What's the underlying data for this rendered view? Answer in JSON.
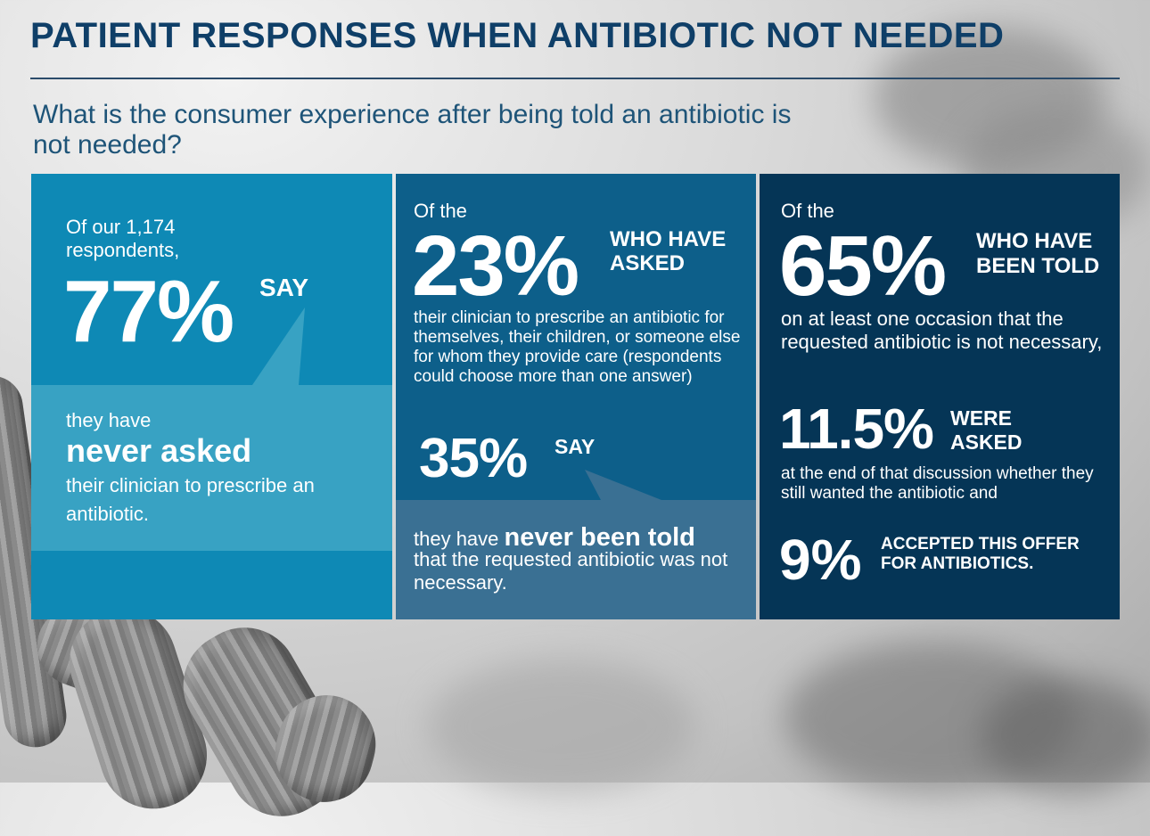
{
  "header": {
    "title": "PATIENT RESPONSES WHEN ANTIBIOTIC NOT NEEDED",
    "subtitle": "What is the consumer experience after being told an antibiotic is not needed?"
  },
  "panel_1": {
    "lead": "Of our 1,174 respondents,",
    "stat": "77%",
    "stat_label": "SAY",
    "line_1": "they have",
    "line_2": "never asked",
    "line_3": "their clinician to prescribe an antibiotic."
  },
  "panel_2": {
    "lead": "Of the",
    "stat": "23%",
    "stat_label": "WHO HAVE ASKED",
    "description": "their clinician to prescribe an antibiotic for themselves, their children, or someone else for whom they provide care (respondents could choose more than one answer)",
    "stat_2": "35%",
    "stat_2_label": "SAY",
    "line_1": "they have",
    "line_1_bold": "never been told",
    "line_2": "that the requested antibiotic was not necessary."
  },
  "panel_3": {
    "lead": "Of the",
    "stat": "65%",
    "stat_label": "WHO HAVE BEEN TOLD",
    "description": "on at least one occasion that the requested antibiotic is not necessary,",
    "stat_2": "11.5%",
    "stat_2_label": "WERE ASKED",
    "description_2": "at the end of that discussion whether they still wanted the antibiotic and",
    "stat_3": "9%",
    "stat_3_label": "ACCEPTED THIS OFFER FOR ANTIBIOTICS."
  },
  "colors": {
    "title": "#0f3f68",
    "panel_1": "#0e89b5",
    "panel_1_callout": "#38a2c3",
    "panel_2": "#0d5f8a",
    "panel_2_callout": "#3a7093",
    "panel_3": "#053556"
  },
  "background_image": "grayscale microscope image of rod-shaped bacteria"
}
